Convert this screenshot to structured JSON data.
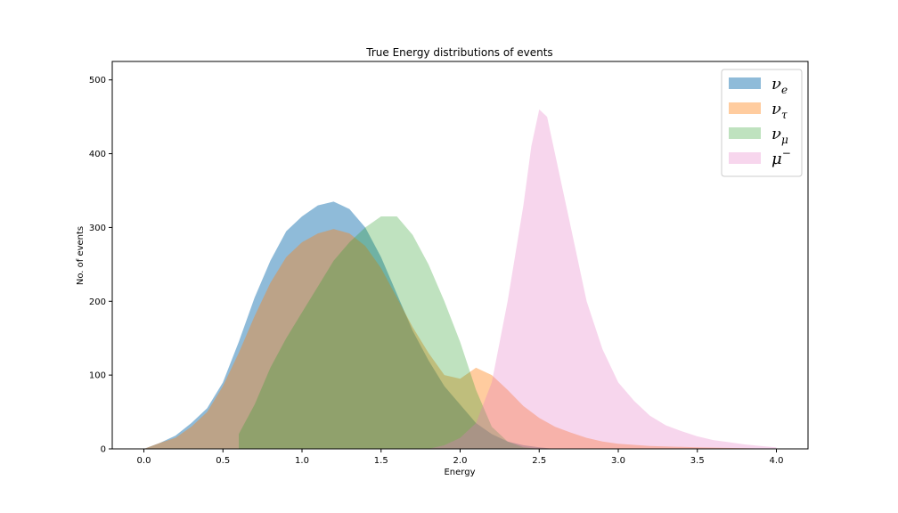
{
  "chart_data": {
    "type": "area",
    "title": "True Energy distributions of events",
    "xlabel": "Energy",
    "ylabel": "No. of events",
    "xlim": [
      -0.2,
      4.2
    ],
    "ylim": [
      0,
      525
    ],
    "xticks": [
      "0.0",
      "0.5",
      "1.0",
      "1.5",
      "2.0",
      "2.5",
      "3.0",
      "3.5",
      "4.0"
    ],
    "yticks": [
      "0",
      "100",
      "200",
      "300",
      "400",
      "500"
    ],
    "legend_position": "top-right",
    "grid": false,
    "series": [
      {
        "name": "ν_e",
        "legend_base": "ν",
        "legend_sub": "e",
        "color": "#1f77b4",
        "opacity": 0.5,
        "points": [
          [
            0.0,
            0
          ],
          [
            0.1,
            8
          ],
          [
            0.2,
            18
          ],
          [
            0.3,
            35
          ],
          [
            0.4,
            55
          ],
          [
            0.5,
            90
          ],
          [
            0.6,
            145
          ],
          [
            0.7,
            205
          ],
          [
            0.8,
            255
          ],
          [
            0.9,
            295
          ],
          [
            1.0,
            315
          ],
          [
            1.1,
            330
          ],
          [
            1.2,
            335
          ],
          [
            1.3,
            325
          ],
          [
            1.4,
            300
          ],
          [
            1.5,
            260
          ],
          [
            1.6,
            210
          ],
          [
            1.7,
            160
          ],
          [
            1.8,
            120
          ],
          [
            1.9,
            85
          ],
          [
            2.0,
            60
          ],
          [
            2.1,
            35
          ],
          [
            2.2,
            20
          ],
          [
            2.3,
            10
          ],
          [
            2.4,
            5
          ],
          [
            2.5,
            2
          ],
          [
            2.6,
            0
          ]
        ]
      },
      {
        "name": "ν_τ",
        "legend_base": "ν",
        "legend_sub": "τ",
        "color": "#ff7f0e",
        "opacity": 0.4,
        "points": [
          [
            0.0,
            0
          ],
          [
            0.1,
            8
          ],
          [
            0.2,
            15
          ],
          [
            0.3,
            30
          ],
          [
            0.4,
            50
          ],
          [
            0.5,
            85
          ],
          [
            0.6,
            130
          ],
          [
            0.7,
            180
          ],
          [
            0.8,
            225
          ],
          [
            0.9,
            260
          ],
          [
            1.0,
            280
          ],
          [
            1.1,
            292
          ],
          [
            1.2,
            298
          ],
          [
            1.3,
            292
          ],
          [
            1.4,
            275
          ],
          [
            1.5,
            245
          ],
          [
            1.6,
            205
          ],
          [
            1.7,
            165
          ],
          [
            1.8,
            130
          ],
          [
            1.9,
            100
          ],
          [
            2.0,
            95
          ],
          [
            2.1,
            110
          ],
          [
            2.2,
            100
          ],
          [
            2.3,
            80
          ],
          [
            2.4,
            58
          ],
          [
            2.5,
            42
          ],
          [
            2.6,
            30
          ],
          [
            2.7,
            22
          ],
          [
            2.8,
            15
          ],
          [
            2.9,
            10
          ],
          [
            3.0,
            7
          ],
          [
            3.2,
            4
          ],
          [
            3.5,
            2
          ],
          [
            3.8,
            1
          ],
          [
            4.0,
            0
          ]
        ]
      },
      {
        "name": "ν_μ",
        "legend_base": "ν",
        "legend_sub": "μ",
        "color": "#2ca02c",
        "opacity": 0.3,
        "points": [
          [
            0.6,
            0
          ],
          [
            0.6,
            20
          ],
          [
            0.7,
            60
          ],
          [
            0.8,
            110
          ],
          [
            0.9,
            150
          ],
          [
            1.0,
            185
          ],
          [
            1.1,
            220
          ],
          [
            1.2,
            255
          ],
          [
            1.3,
            280
          ],
          [
            1.4,
            300
          ],
          [
            1.5,
            315
          ],
          [
            1.6,
            315
          ],
          [
            1.7,
            290
          ],
          [
            1.8,
            250
          ],
          [
            1.9,
            200
          ],
          [
            2.0,
            145
          ],
          [
            2.1,
            80
          ],
          [
            2.2,
            30
          ],
          [
            2.3,
            10
          ],
          [
            2.4,
            2
          ],
          [
            2.5,
            0
          ]
        ]
      },
      {
        "name": "μ^-",
        "legend_base": "μ",
        "legend_sup": "−",
        "color": "#e377c2",
        "opacity": 0.3,
        "points": [
          [
            1.8,
            0
          ],
          [
            1.9,
            5
          ],
          [
            2.0,
            15
          ],
          [
            2.1,
            35
          ],
          [
            2.2,
            90
          ],
          [
            2.3,
            200
          ],
          [
            2.4,
            330
          ],
          [
            2.45,
            410
          ],
          [
            2.5,
            460
          ],
          [
            2.55,
            450
          ],
          [
            2.6,
            400
          ],
          [
            2.7,
            300
          ],
          [
            2.8,
            200
          ],
          [
            2.9,
            135
          ],
          [
            3.0,
            90
          ],
          [
            3.1,
            65
          ],
          [
            3.2,
            45
          ],
          [
            3.3,
            32
          ],
          [
            3.4,
            24
          ],
          [
            3.5,
            17
          ],
          [
            3.6,
            12
          ],
          [
            3.7,
            9
          ],
          [
            3.8,
            6
          ],
          [
            3.9,
            4
          ],
          [
            4.0,
            2
          ]
        ]
      }
    ]
  }
}
